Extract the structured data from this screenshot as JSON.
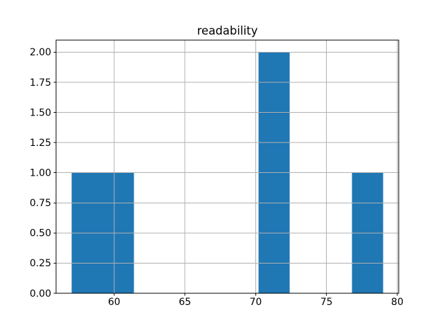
{
  "figure": {
    "background": "#ffffff"
  },
  "chart_data": {
    "type": "bar",
    "subtype": "histogram",
    "title": "readability",
    "xlabel": "",
    "ylabel": "",
    "bin_edges": [
      57.0,
      59.2,
      61.4,
      63.6,
      65.8,
      68.0,
      70.2,
      72.4,
      74.6,
      76.8,
      79.0
    ],
    "counts": [
      1,
      1,
      0,
      0,
      0,
      0,
      2,
      0,
      0,
      1
    ],
    "bars_visible": [
      {
        "x_start": 57.0,
        "x_end": 61.4,
        "height": 1
      },
      {
        "x_start": 70.2,
        "x_end": 72.4,
        "height": 2
      },
      {
        "x_start": 76.8,
        "x_end": 79.0,
        "height": 1
      }
    ],
    "xlim": [
      55.9,
      80.1
    ],
    "ylim": [
      0,
      2.1
    ],
    "x_ticks": [
      {
        "value": 60,
        "label": "60"
      },
      {
        "value": 65,
        "label": "65"
      },
      {
        "value": 70,
        "label": "70"
      },
      {
        "value": 75,
        "label": "75"
      },
      {
        "value": 80,
        "label": "80"
      }
    ],
    "y_ticks": [
      {
        "value": 0.0,
        "label": "0.00"
      },
      {
        "value": 0.25,
        "label": "0.25"
      },
      {
        "value": 0.5,
        "label": "0.50"
      },
      {
        "value": 0.75,
        "label": "0.75"
      },
      {
        "value": 1.0,
        "label": "1.00"
      },
      {
        "value": 1.25,
        "label": "1.25"
      },
      {
        "value": 1.5,
        "label": "1.50"
      },
      {
        "value": 1.75,
        "label": "1.75"
      },
      {
        "value": 2.0,
        "label": "2.00"
      }
    ],
    "grid": true,
    "grid_on_top_of_bars": true,
    "legend": null,
    "colors": {
      "bar": "#1f77b4",
      "grid": "#b0b0b0",
      "axis": "#000000",
      "text": "#000000",
      "background": "#ffffff"
    }
  }
}
